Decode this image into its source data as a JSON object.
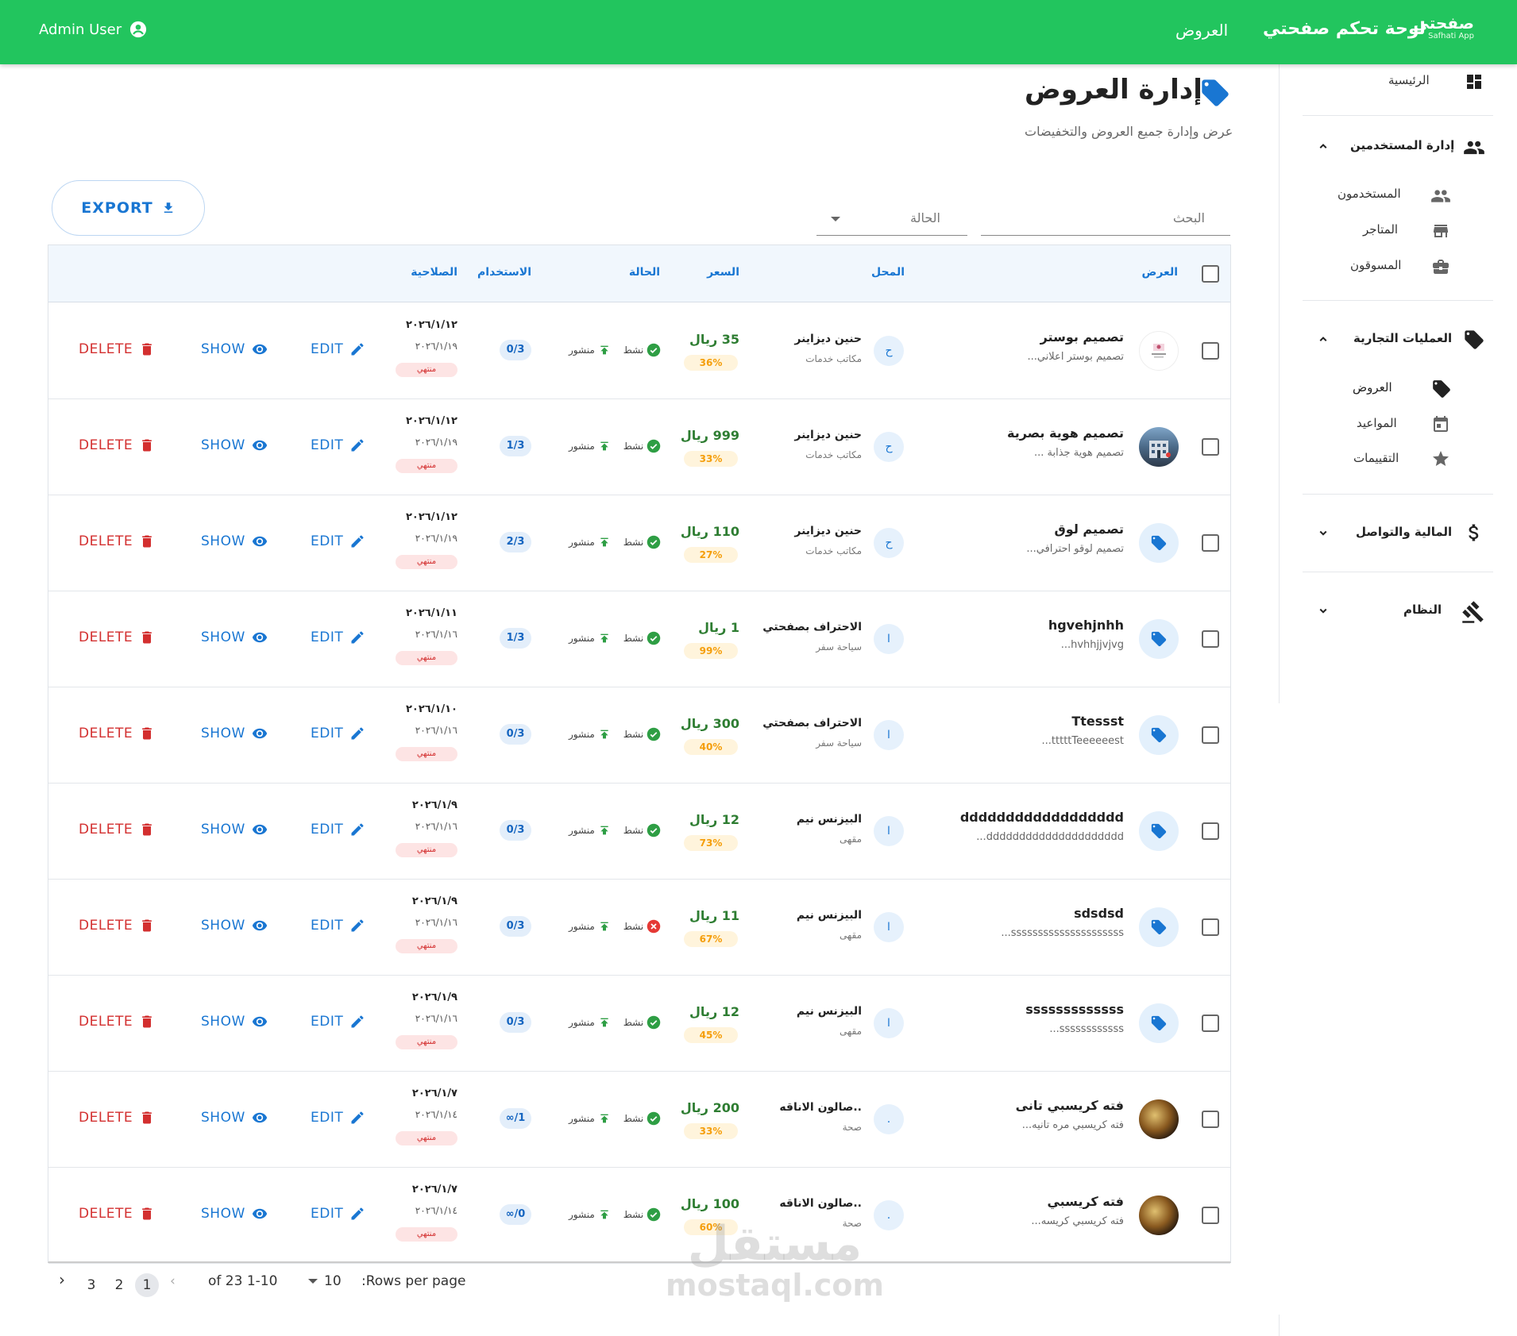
{
  "topbar": {
    "admin_label": "Admin User",
    "nav_offers": "العروض",
    "app_title": "لوحة تحكم صفحتي",
    "logo_text": "صفحتي",
    "logo_sub": "Safhati App"
  },
  "sidebar": {
    "home": "الرئيسية",
    "users_section": "إدارة المستخدمين",
    "users": "المستخدمون",
    "stores": "المتاجر",
    "marketers": "المسوقون",
    "commerce_section": "العمليات التجارية",
    "offers": "العروض",
    "appointments": "المواعيد",
    "ratings": "التقييمات",
    "finance_section": "المالية والتواصل",
    "system_section": "النظام"
  },
  "page": {
    "title": "إدارة العروض",
    "subtitle": "عرض وإدارة جميع العروض والتخفيضات",
    "export_label": "EXPORT",
    "search_placeholder": "البحث",
    "status_placeholder": "الحالة"
  },
  "table": {
    "headers": {
      "offer": "العرض",
      "store": "المحل",
      "price": "السعر",
      "status": "الحالة",
      "usage": "الاستخدام",
      "validity": "الصلاحية"
    },
    "actions": {
      "edit": "EDIT",
      "show": "SHOW",
      "delete": "DELETE"
    },
    "rows": [
      {
        "title": "تصميم بوستر",
        "desc": "تصميم بوستر اعلاني...",
        "thumb": "poster",
        "store_initial": "ح",
        "store": "حنين ديزاينر",
        "category": "مكاتب خدمات",
        "price": "35 ريال",
        "discount": "36%",
        "active": "نشط",
        "active_ok": true,
        "published": "منشور",
        "usage": "0/3",
        "date_start": "٢٠٢٦/١/١٢",
        "date_end": "٢٠٢٦/١/١٩",
        "expired": "منتهي"
      },
      {
        "title": "تصميم هوية بصرية",
        "desc": "تصميم هوية جذابة ...",
        "thumb": "building",
        "store_initial": "ح",
        "store": "حنين ديزاينر",
        "category": "مكاتب خدمات",
        "price": "999 ريال",
        "discount": "33%",
        "active": "نشط",
        "active_ok": true,
        "published": "منشور",
        "usage": "1/3",
        "date_start": "٢٠٢٦/١/١٢",
        "date_end": "٢٠٢٦/١/١٩",
        "expired": "منتهي"
      },
      {
        "title": "تصميم لوق",
        "desc": "تصميم لوقو احترافي...",
        "thumb": "tag",
        "store_initial": "ح",
        "store": "حنين ديزاينر",
        "category": "مكاتب خدمات",
        "price": "110 ريال",
        "discount": "27%",
        "active": "نشط",
        "active_ok": true,
        "published": "منشور",
        "usage": "2/3",
        "date_start": "٢٠٢٦/١/١٢",
        "date_end": "٢٠٢٦/١/١٩",
        "expired": "منتهي"
      },
      {
        "title": "hgvehjnhh",
        "desc": "hvhhjjvjvg...",
        "thumb": "tag",
        "store_initial": "ا",
        "store": "الاحتراف بصفحتي",
        "category": "سياحة سفر",
        "price": "1 ريال",
        "discount": "99%",
        "active": "نشط",
        "active_ok": true,
        "published": "منشور",
        "usage": "1/3",
        "date_start": "٢٠٢٦/١/١١",
        "date_end": "٢٠٢٦/١/١٦",
        "expired": "منتهي"
      },
      {
        "title": "Ttessst",
        "desc": "tttttTeeeeeest...",
        "thumb": "tag",
        "store_initial": "ا",
        "store": "الاحتراف بصفحتي",
        "category": "سياحة سفر",
        "price": "300 ريال",
        "discount": "40%",
        "active": "نشط",
        "active_ok": true,
        "published": "منشور",
        "usage": "0/3",
        "date_start": "٢٠٢٦/١/١٠",
        "date_end": "٢٠٢٦/١/١٦",
        "expired": "منتهي"
      },
      {
        "title": "dddddddddddddddddd",
        "desc": "ddddddddddddddddddddd...",
        "thumb": "tag",
        "store_initial": "ا",
        "store": "البيزنس نيم",
        "category": "مقهى",
        "price": "12 ريال",
        "discount": "73%",
        "active": "نشط",
        "active_ok": true,
        "published": "منشور",
        "usage": "0/3",
        "date_start": "٢٠٢٦/١/٩",
        "date_end": "٢٠٢٦/١/١٦",
        "expired": "منتهي"
      },
      {
        "title": "sdsdsd",
        "desc": "sssssssssssssssssssss...",
        "thumb": "tag",
        "store_initial": "ا",
        "store": "البيزنس نيم",
        "category": "مقهى",
        "price": "11 ريال",
        "discount": "67%",
        "active": "نشط",
        "active_ok": false,
        "published": "منشور",
        "usage": "0/3",
        "date_start": "٢٠٢٦/١/٩",
        "date_end": "٢٠٢٦/١/١٦",
        "expired": "منتهي"
      },
      {
        "title": "sssssssssssss",
        "desc": "ssssssssssss...",
        "thumb": "tag",
        "store_initial": "ا",
        "store": "البيزنس نيم",
        "category": "مقهى",
        "price": "12 ريال",
        "discount": "45%",
        "active": "نشط",
        "active_ok": true,
        "published": "منشور",
        "usage": "0/3",
        "date_start": "٢٠٢٦/١/٩",
        "date_end": "٢٠٢٦/١/١٦",
        "expired": "منتهي"
      },
      {
        "title": "فته كريسبي تانى",
        "desc": "فته كريسبي مره تانيه...",
        "thumb": "photo",
        "store_initial": ".",
        "store": "..صالون الاناقه",
        "category": "صحة",
        "price": "200 ريال",
        "discount": "33%",
        "active": "نشط",
        "active_ok": true,
        "published": "منشور",
        "usage": "∞/1",
        "date_start": "٢٠٢٦/١/٧",
        "date_end": "٢٠٢٦/١/١٤",
        "expired": "منتهي"
      },
      {
        "title": "فته كريسبي",
        "desc": "فته كريسبي كريسه...",
        "thumb": "photo",
        "store_initial": ".",
        "store": "..صالون الاناقه",
        "category": "صحة",
        "price": "100 ريال",
        "discount": "60%",
        "active": "نشط",
        "active_ok": true,
        "published": "منشور",
        "usage": "∞/0",
        "date_start": "٢٠٢٦/١/٧",
        "date_end": "٢٠٢٦/١/١٤",
        "expired": "منتهي"
      }
    ]
  },
  "pagination": {
    "rows_per_page_label": ":Rows per page",
    "rows_per_page": "10",
    "range": "of 23 1-10",
    "pages": [
      "3",
      "2",
      "1"
    ],
    "current_page": "1"
  },
  "watermark": {
    "arabic": "مستقل",
    "latin": "mostaql.com"
  },
  "colors": {
    "topbar": "#22c55e",
    "primary": "#1976d2",
    "danger": "#d32f2f",
    "price": "#2e7d32",
    "discount": "#f59e0b"
  },
  "icons": {
    "admin": "account-circle-icon",
    "home": "dashboard-icon",
    "users": "people-icon",
    "stores": "store-icon",
    "marketers": "briefcase-icon",
    "offers": "tag-icon",
    "appointments": "calendar-icon",
    "ratings": "star-icon",
    "finance": "dollar-icon",
    "system": "gavel-icon",
    "export": "download-icon",
    "edit": "pencil-icon",
    "show": "eye-icon",
    "delete": "trash-icon",
    "status_ok": "check-circle-icon",
    "status_off": "cancel-circle-icon",
    "published": "publish-icon"
  }
}
